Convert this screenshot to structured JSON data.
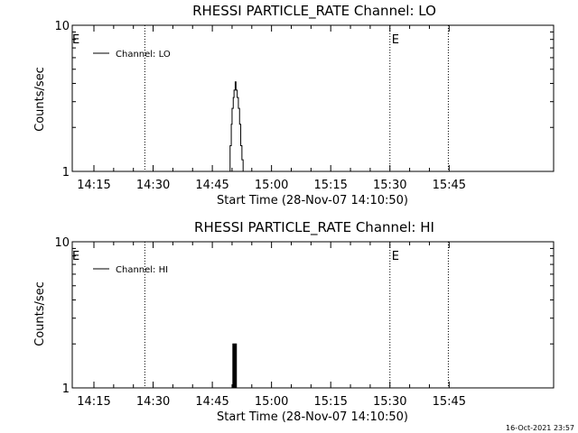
{
  "footer": {
    "timestamp": "16-Oct-2021 23:57"
  },
  "chart_data": [
    {
      "type": "line",
      "title": "RHESSI PARTICLE_RATE Channel: LO",
      "xlabel": "Start Time (28-Nov-07 14:10:50)",
      "ylabel": "Counts/sec",
      "x_unit": "minutes since 14:00",
      "xlim": [
        11.5,
        54.0
      ],
      "ylim": [
        1,
        10
      ],
      "y_scale": "log",
      "x_ticks": [
        {
          "v": 15,
          "label": "14:15"
        },
        {
          "v": 30,
          "label": "14:30"
        },
        {
          "v": 45,
          "label": "14:45"
        },
        {
          "v": 60,
          "label": "15:00"
        },
        {
          "v": 75,
          "label": "15:15"
        },
        {
          "v": 90,
          "label": "15:30"
        },
        {
          "v": 105,
          "label": "15:45"
        }
      ],
      "y_ticks": [
        {
          "v": 1,
          "label": "1"
        },
        {
          "v": 10,
          "label": "10"
        }
      ],
      "event_lines": [
        {
          "x": 27.9
        },
        {
          "x": 90.0,
          "label": "E"
        },
        {
          "x": 104.8
        }
      ],
      "left_marker": "E",
      "series": [
        {
          "name": "Channel: LO",
          "x": [
            49.3,
            49.5,
            49.8,
            50.0,
            50.3,
            50.5,
            50.8,
            51.0,
            51.3,
            51.6,
            51.9,
            52.2,
            52.5,
            52.8,
            53.0
          ],
          "y": [
            1.0,
            1.5,
            2.1,
            2.7,
            3.2,
            3.6,
            4.1,
            3.6,
            3.2,
            2.7,
            2.1,
            1.5,
            1.2,
            1.0,
            1.0
          ]
        }
      ]
    },
    {
      "type": "line",
      "title": "RHESSI PARTICLE_RATE Channel: HI",
      "xlabel": "Start Time (28-Nov-07 14:10:50)",
      "ylabel": "Counts/sec",
      "x_unit": "minutes since 14:00",
      "xlim": [
        11.5,
        54.0
      ],
      "ylim": [
        1,
        10
      ],
      "y_scale": "log",
      "x_ticks": [
        {
          "v": 15,
          "label": "14:15"
        },
        {
          "v": 30,
          "label": "14:30"
        },
        {
          "v": 45,
          "label": "14:45"
        },
        {
          "v": 60,
          "label": "15:00"
        },
        {
          "v": 75,
          "label": "15:15"
        },
        {
          "v": 90,
          "label": "15:30"
        },
        {
          "v": 105,
          "label": "15:45"
        }
      ],
      "y_ticks": [
        {
          "v": 1,
          "label": "1"
        },
        {
          "v": 10,
          "label": "10"
        }
      ],
      "event_lines": [
        {
          "x": 27.9
        },
        {
          "x": 90.0,
          "label": "E"
        },
        {
          "x": 104.8
        }
      ],
      "left_marker": "E",
      "series": [
        {
          "name": "Channel: HI",
          "x": [
            50.1,
            50.2,
            50.3,
            50.4,
            50.5,
            50.6,
            50.7,
            50.8,
            50.9,
            51.0,
            51.1,
            51.2
          ],
          "y": [
            1.0,
            2.0,
            2.0,
            1.0,
            2.0,
            2.0,
            1.0,
            1.0,
            2.0,
            2.0,
            1.0,
            1.0
          ]
        }
      ]
    }
  ]
}
